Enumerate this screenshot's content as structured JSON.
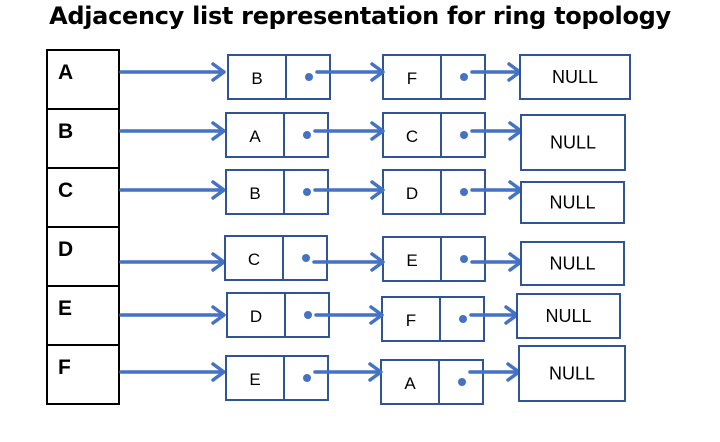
{
  "title": "Adjacency list representation for ring topology",
  "colors": {
    "arrow": "#4472c4",
    "node_border": "#2f5597",
    "pointer_dot": "#4472c4",
    "vertex_border": "#000000"
  },
  "null_label": "NULL",
  "rows": [
    {
      "vertex": "A",
      "neighbors": [
        "B",
        "F"
      ]
    },
    {
      "vertex": "B",
      "neighbors": [
        "A",
        "C"
      ]
    },
    {
      "vertex": "C",
      "neighbors": [
        "B",
        "D"
      ]
    },
    {
      "vertex": "D",
      "neighbors": [
        "C",
        "E"
      ]
    },
    {
      "vertex": "E",
      "neighbors": [
        "D",
        "F"
      ]
    },
    {
      "vertex": "F",
      "neighbors": [
        "E",
        "A"
      ]
    }
  ]
}
